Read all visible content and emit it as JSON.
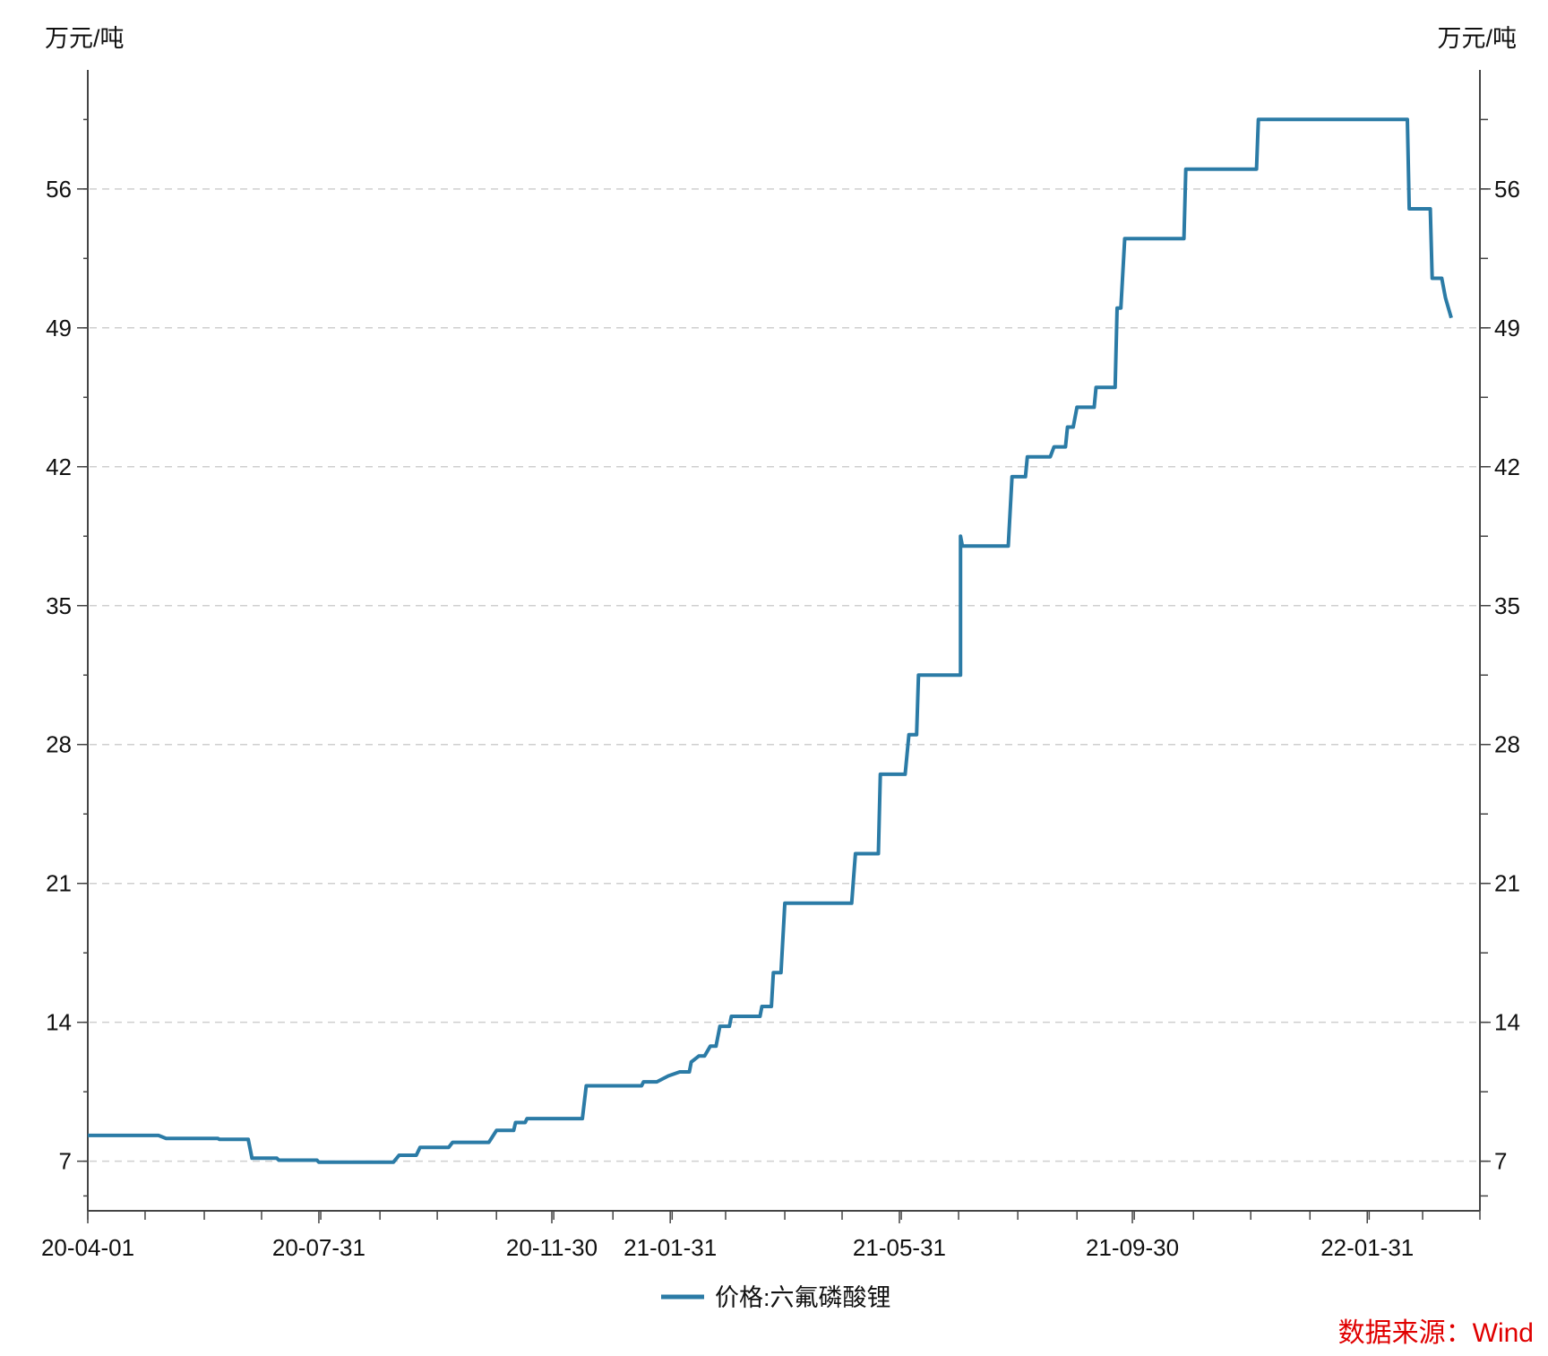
{
  "chart_data": {
    "type": "line",
    "title": "",
    "left_unit": "万元/吨",
    "right_unit": "万元/吨",
    "xlabel": "",
    "ylabel": "",
    "ylim": [
      4.5,
      62
    ],
    "yticks": [
      7,
      14,
      21,
      28,
      35,
      42,
      49,
      56
    ],
    "ytick_labels": [
      "7",
      "14",
      "21",
      "28",
      "35",
      "42",
      "49",
      "56"
    ],
    "xlim": [
      "2020-04-01",
      "2022-03-31"
    ],
    "xticks": [
      "2020-04-01",
      "2020-07-31",
      "2020-11-30",
      "2021-01-31",
      "2021-05-31",
      "2021-09-30",
      "2022-01-31"
    ],
    "xtick_labels": [
      "20-04-01",
      "20-07-31",
      "20-11-30",
      "21-01-31",
      "21-05-31",
      "21-09-30",
      "22-01-31"
    ],
    "grid": true,
    "legend_position": "bottom-center",
    "source": "数据来源：Wind",
    "series": [
      {
        "name": "价格:六氟磷酸锂",
        "color": "#2b7ba6",
        "points": [
          [
            "2020-04-01",
            8.3
          ],
          [
            "2020-05-08",
            8.3
          ],
          [
            "2020-05-12",
            8.15
          ],
          [
            "2020-06-08",
            8.15
          ],
          [
            "2020-06-09",
            8.1
          ],
          [
            "2020-06-24",
            8.1
          ],
          [
            "2020-06-26",
            7.15
          ],
          [
            "2020-07-09",
            7.15
          ],
          [
            "2020-07-10",
            7.05
          ],
          [
            "2020-07-30",
            7.05
          ],
          [
            "2020-07-31",
            6.95
          ],
          [
            "2020-09-08",
            6.95
          ],
          [
            "2020-09-11",
            7.3
          ],
          [
            "2020-09-20",
            7.3
          ],
          [
            "2020-09-22",
            7.7
          ],
          [
            "2020-10-07",
            7.7
          ],
          [
            "2020-10-09",
            7.95
          ],
          [
            "2020-10-28",
            7.95
          ],
          [
            "2020-11-01",
            8.55
          ],
          [
            "2020-11-10",
            8.55
          ],
          [
            "2020-11-11",
            8.95
          ],
          [
            "2020-11-16",
            8.95
          ],
          [
            "2020-11-17",
            9.15
          ],
          [
            "2020-12-16",
            9.15
          ],
          [
            "2020-12-18",
            10.8
          ],
          [
            "2021-01-16",
            10.8
          ],
          [
            "2021-01-17",
            11.0
          ],
          [
            "2021-01-24",
            11.0
          ],
          [
            "2021-01-30",
            11.3
          ],
          [
            "2021-02-05",
            11.5
          ],
          [
            "2021-02-10",
            11.5
          ],
          [
            "2021-02-11",
            12.0
          ],
          [
            "2021-02-15",
            12.3
          ],
          [
            "2021-02-18",
            12.3
          ],
          [
            "2021-02-21",
            12.8
          ],
          [
            "2021-02-24",
            12.8
          ],
          [
            "2021-02-26",
            13.8
          ],
          [
            "2021-03-03",
            13.8
          ],
          [
            "2021-03-04",
            14.3
          ],
          [
            "2021-03-19",
            14.3
          ],
          [
            "2021-03-20",
            14.8
          ],
          [
            "2021-03-25",
            14.8
          ],
          [
            "2021-03-26",
            16.5
          ],
          [
            "2021-03-30",
            16.5
          ],
          [
            "2021-04-01",
            20.0
          ],
          [
            "2021-05-06",
            20.0
          ],
          [
            "2021-05-08",
            22.5
          ],
          [
            "2021-05-20",
            22.5
          ],
          [
            "2021-05-21",
            26.5
          ],
          [
            "2021-06-03",
            26.5
          ],
          [
            "2021-06-04",
            27.5
          ],
          [
            "2021-06-05",
            28.5
          ],
          [
            "2021-06-09",
            28.5
          ],
          [
            "2021-06-10",
            31.5
          ],
          [
            "2021-07-02",
            31.5
          ],
          [
            "2021-07-02",
            38.5
          ],
          [
            "2021-07-03",
            38.0
          ],
          [
            "2021-07-27",
            38.0
          ],
          [
            "2021-07-29",
            41.5
          ],
          [
            "2021-08-05",
            41.5
          ],
          [
            "2021-08-06",
            42.5
          ],
          [
            "2021-08-18",
            42.5
          ],
          [
            "2021-08-20",
            43.0
          ],
          [
            "2021-08-26",
            43.0
          ],
          [
            "2021-08-27",
            44.0
          ],
          [
            "2021-08-30",
            44.0
          ],
          [
            "2021-09-01",
            45.0
          ],
          [
            "2021-09-10",
            45.0
          ],
          [
            "2021-09-11",
            46.0
          ],
          [
            "2021-09-21",
            46.0
          ],
          [
            "2021-09-22",
            50.0
          ],
          [
            "2021-09-24",
            50.0
          ],
          [
            "2021-09-26",
            53.5
          ],
          [
            "2021-10-27",
            53.5
          ],
          [
            "2021-10-28",
            57.0
          ],
          [
            "2021-12-04",
            57.0
          ],
          [
            "2021-12-05",
            59.5
          ],
          [
            "2022-02-21",
            59.5
          ],
          [
            "2022-02-22",
            55.0
          ],
          [
            "2022-03-05",
            55.0
          ],
          [
            "2022-03-06",
            51.5
          ],
          [
            "2022-03-11",
            51.5
          ],
          [
            "2022-03-13",
            50.5
          ],
          [
            "2022-03-16",
            49.5
          ]
        ]
      }
    ]
  }
}
